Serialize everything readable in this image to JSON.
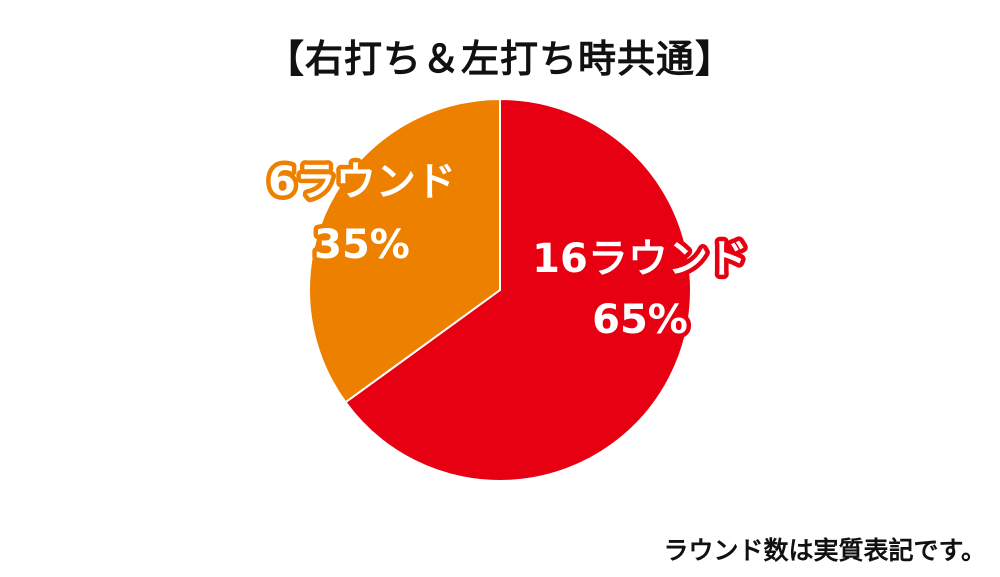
{
  "title": "【右打ち＆左打ち時共通】",
  "footnote": "ラウンド数は実質表記です。",
  "chart_data": {
    "type": "pie",
    "start": "top",
    "direction": "clockwise",
    "slices": [
      {
        "label": "16ラウンド",
        "value": 65,
        "value_label": "65%",
        "color": "#e60012"
      },
      {
        "label": "6ラウンド",
        "value": 35,
        "value_label": "35%",
        "color": "#ee8000"
      }
    ]
  }
}
